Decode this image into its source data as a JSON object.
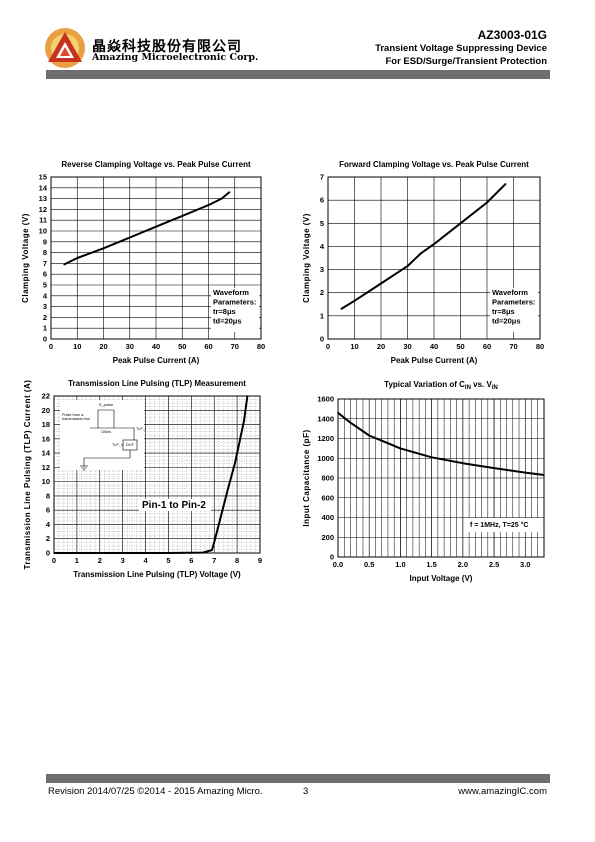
{
  "header": {
    "company_cn": "晶焱科技股份有限公司",
    "company_en": "Amazing Microelectronic Corp.",
    "part_number": "AZ3003-01G",
    "subtitle_line1": "Transient Voltage Suppressing Device",
    "subtitle_line2": "For ESD/Surge/Transient Protection",
    "logo_icon": "amazing-logo-icon"
  },
  "footer": {
    "revision": "Revision 2014/07/25 ©2014 - 2015 Amazing Micro.",
    "page": "3",
    "website": "www.amazingIC.com"
  },
  "chart_data": [
    {
      "id": "reverse",
      "type": "line",
      "title": "Reverse Clamping Voltage vs. Peak Pulse Current",
      "xlabel": "Peak Pulse Current (A)",
      "ylabel": "Clamping Voltage (V)",
      "xlim": [
        0,
        80
      ],
      "ylim": [
        0,
        15
      ],
      "xticks": [
        0,
        10,
        20,
        30,
        40,
        50,
        60,
        70,
        80
      ],
      "yticks": [
        0,
        1,
        2,
        3,
        4,
        5,
        6,
        7,
        8,
        9,
        10,
        11,
        12,
        13,
        14,
        15
      ],
      "grid": true,
      "annotation": [
        "Waveform",
        "Parameters:",
        "tr=8μs",
        "td=20μs"
      ],
      "x": [
        5,
        10,
        20,
        30,
        40,
        50,
        55,
        60,
        65,
        68
      ],
      "y": [
        6.9,
        7.5,
        8.4,
        9.4,
        10.4,
        11.4,
        11.9,
        12.4,
        13.0,
        13.6
      ]
    },
    {
      "id": "forward",
      "type": "line",
      "title": "Forward Clamping Voltage vs. Peak Pulse Current",
      "xlabel": "Peak Pulse Current (A)",
      "ylabel": "Clamping Voltage (V)",
      "xlim": [
        0,
        80
      ],
      "ylim": [
        0,
        7
      ],
      "xticks": [
        0,
        10,
        20,
        30,
        40,
        50,
        60,
        70,
        80
      ],
      "yticks": [
        0,
        1,
        2,
        3,
        4,
        5,
        6,
        7
      ],
      "grid": true,
      "annotation": [
        "Waveform",
        "Parameters:",
        "tr=8μs",
        "td=20μs"
      ],
      "x": [
        5,
        10,
        20,
        30,
        35,
        40,
        50,
        60,
        67
      ],
      "y": [
        1.3,
        1.65,
        2.4,
        3.15,
        3.7,
        4.1,
        5.0,
        5.9,
        6.7
      ]
    },
    {
      "id": "tlp",
      "type": "line",
      "title": "Transmission Line Pulsing (TLP) Measurement",
      "xlabel": "Transmission Line Pulsing (TLP) Voltage (V)",
      "ylabel": "Transmission Line Pulsing (TLP) Current (A)",
      "xlim": [
        0,
        9
      ],
      "ylim": [
        0,
        22
      ],
      "xticks": [
        0,
        1,
        2,
        3,
        4,
        5,
        6,
        7,
        8,
        9
      ],
      "yticks": [
        0,
        2,
        4,
        6,
        8,
        10,
        12,
        14,
        16,
        18,
        20,
        22
      ],
      "grid": true,
      "annotation": [
        "Pin-1 to Pin-2"
      ],
      "inset_labels": [
        "S_pulse",
        "Pulse from a",
        "transmission line",
        "100ns",
        "TLP_V",
        "TLP_I",
        "DUT"
      ],
      "x": [
        0,
        5,
        6.5,
        6.9,
        7.0,
        7.2,
        7.4,
        7.6,
        7.9,
        8.1,
        8.3,
        8.45
      ],
      "y": [
        0,
        0,
        0.05,
        0.4,
        1.5,
        4.0,
        6.5,
        9.0,
        12.5,
        15.5,
        18.5,
        22
      ]
    },
    {
      "id": "capacitance",
      "type": "line",
      "title": "Typical Variation of C_IN vs. V_IN",
      "title_main": "Typical Variation of C",
      "title_sub1": "IN",
      "title_mid": " vs. V",
      "title_sub2": "IN",
      "xlabel": "Input Voltage (V)",
      "ylabel": "Input Capacitance (pF)",
      "xlim": [
        0,
        3.3
      ],
      "ylim": [
        0,
        1600
      ],
      "xticks": [
        0.0,
        0.5,
        1.0,
        1.5,
        2.0,
        2.5,
        3.0
      ],
      "xtick_labels": [
        "0.0",
        "0.5",
        "1.0",
        "1.5",
        "2.0",
        "2.5",
        "3.0"
      ],
      "yticks": [
        0,
        200,
        400,
        600,
        800,
        1000,
        1200,
        1400,
        1600
      ],
      "grid": true,
      "annotation": [
        "f = 1MHz, T=25 °C"
      ],
      "x": [
        0,
        0.2,
        0.5,
        1.0,
        1.5,
        2.0,
        2.5,
        3.0,
        3.3
      ],
      "y": [
        1460,
        1360,
        1230,
        1100,
        1010,
        950,
        900,
        855,
        830
      ]
    }
  ]
}
